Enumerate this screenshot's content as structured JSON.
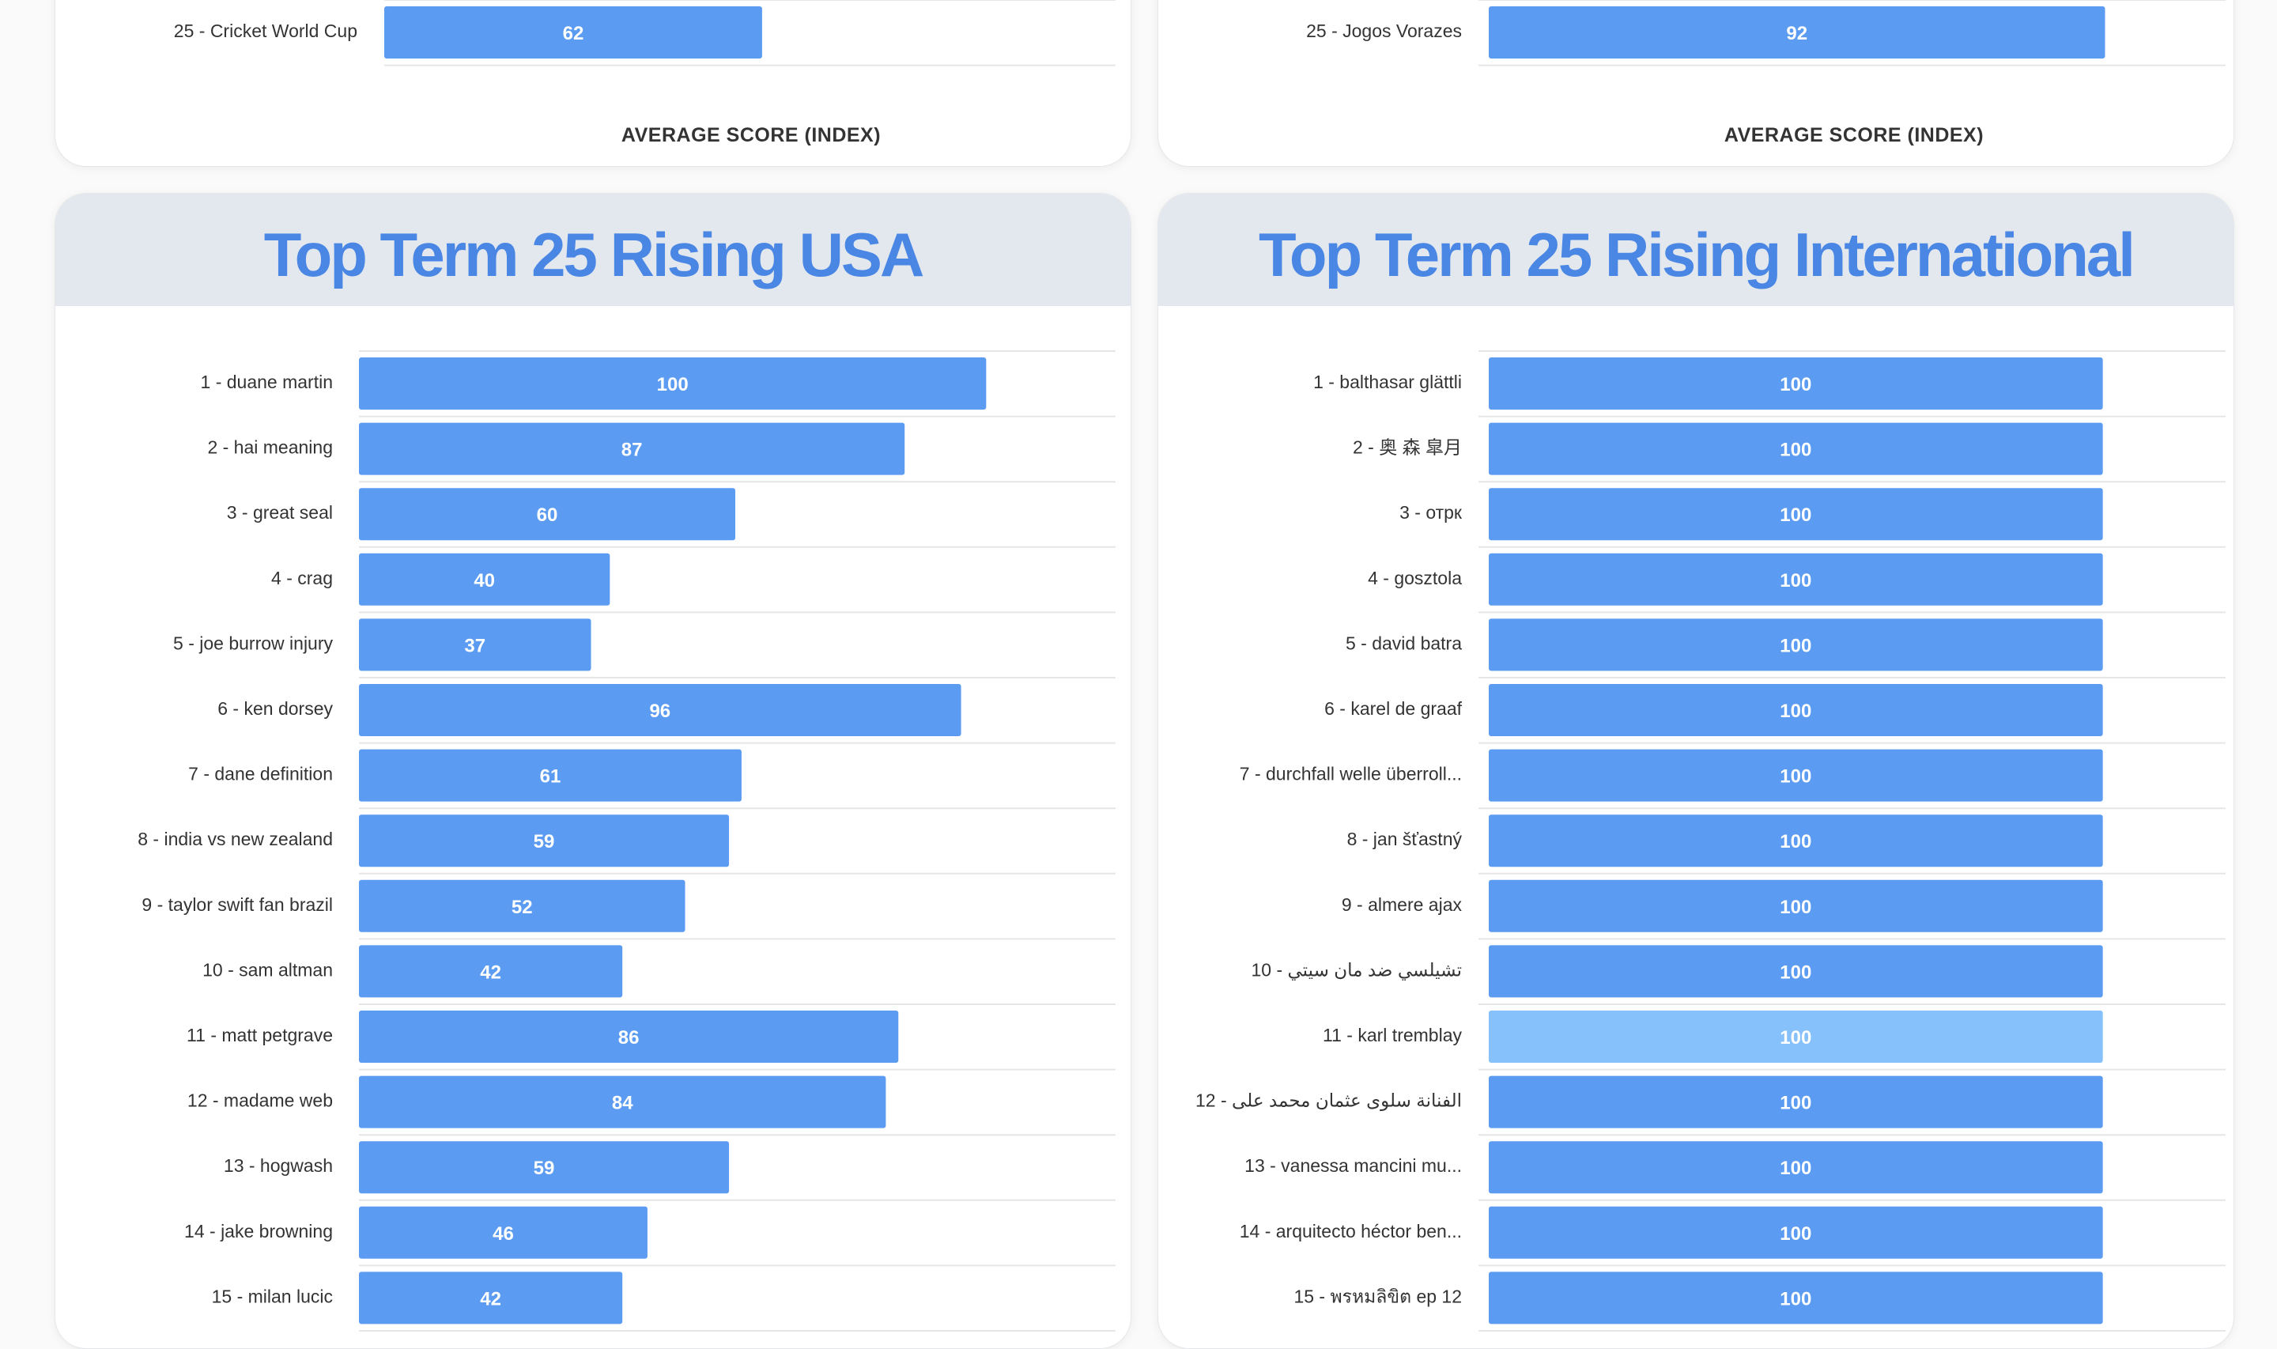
{
  "colors": {
    "bar": "#5b9cf2",
    "bar_highlight": "#86c1fb",
    "title": "#4a86e4"
  },
  "chart_data": [
    {
      "type": "bar",
      "orientation": "horizontal",
      "xlabel": "AVERAGE SCORE (INDEX)",
      "categories": [
        "25 - Cricket World Cup"
      ],
      "values": [
        62
      ],
      "xlim": [
        0,
        120
      ]
    },
    {
      "type": "bar",
      "orientation": "horizontal",
      "xlabel": "AVERAGE SCORE (INDEX)",
      "categories": [
        "25 - Jogos Vorazes"
      ],
      "values": [
        92
      ],
      "xlim": [
        0,
        110
      ]
    },
    {
      "type": "bar",
      "orientation": "horizontal",
      "title": "Top Term 25 Rising USA",
      "categories": [
        "1 - duane martin",
        "2 - hai meaning",
        "3 - great seal",
        "4 - crag",
        "5 - joe burrow injury",
        "6 - ken dorsey",
        "7 - dane definition",
        "8 - india vs new zealand",
        "9 - taylor swift fan brazil",
        "10 - sam altman",
        "11 - matt petgrave",
        "12 - madame web",
        "13 - hogwash",
        "14 - jake browning",
        "15 - milan lucic"
      ],
      "values": [
        100,
        87,
        60,
        40,
        37,
        96,
        61,
        59,
        52,
        42,
        86,
        84,
        59,
        46,
        42
      ],
      "xlim": [
        0,
        120
      ]
    },
    {
      "type": "bar",
      "orientation": "horizontal",
      "title": "Top Term 25 Rising International",
      "categories": [
        "1 - balthasar glättli",
        "2 - 奥 森 皐月",
        "3 - отрк",
        "4 - gosztola",
        "5 - david batra",
        "6 - karel de graaf",
        "7 - durchfall welle überroll...",
        "8 - jan šťastný",
        "9 - almere ajax",
        "10 - تشيلسي ضد مان سيتي",
        "11 - karl tremblay",
        "12 - الفنانة سلوى عثمان محمد على",
        "13 - vanessa mancini mu...",
        "14 - arquitecto héctor ben...",
        "15 - พรหมลิขิต ep 12"
      ],
      "values": [
        100,
        100,
        100,
        100,
        100,
        100,
        100,
        100,
        100,
        100,
        100,
        100,
        100,
        100,
        100
      ],
      "highlight_index": 10,
      "xlim": [
        0,
        120
      ]
    }
  ]
}
